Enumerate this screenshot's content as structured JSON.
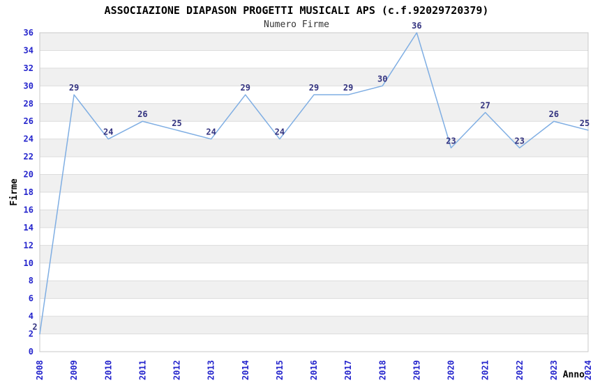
{
  "title": "ASSOCIAZIONE DIAPASON PROGETTI MUSICALI APS (c.f.92029720379)",
  "chart_data": {
    "type": "line",
    "title": "Numero Firme",
    "xlabel": "Anno",
    "ylabel": "Firme",
    "categories": [
      "2008",
      "2009",
      "2010",
      "2011",
      "2012",
      "2013",
      "2014",
      "2015",
      "2016",
      "2017",
      "2018",
      "2019",
      "2020",
      "2021",
      "2022",
      "2023",
      "2024"
    ],
    "values": [
      2,
      29,
      24,
      26,
      25,
      24,
      29,
      24,
      29,
      29,
      30,
      36,
      23,
      27,
      23,
      26,
      25
    ],
    "ylim": [
      0,
      36
    ],
    "ytick_step": 2,
    "grid": "horizontal gridlines every 2 units with alternating light-gray bands",
    "legend_position": "none",
    "data_labels": true
  },
  "colors": {
    "line": "#7FAEE3",
    "axis_tick_labels": "#2424CC",
    "point_labels": "#333380",
    "band_fill": "#F0F0F0",
    "grid_line": "#DCDCDC",
    "plot_border": "#C8C8C8",
    "title": "#000000",
    "subtitle": "#333333",
    "axis_title": "#000000",
    "background": "#FFFFFF"
  }
}
